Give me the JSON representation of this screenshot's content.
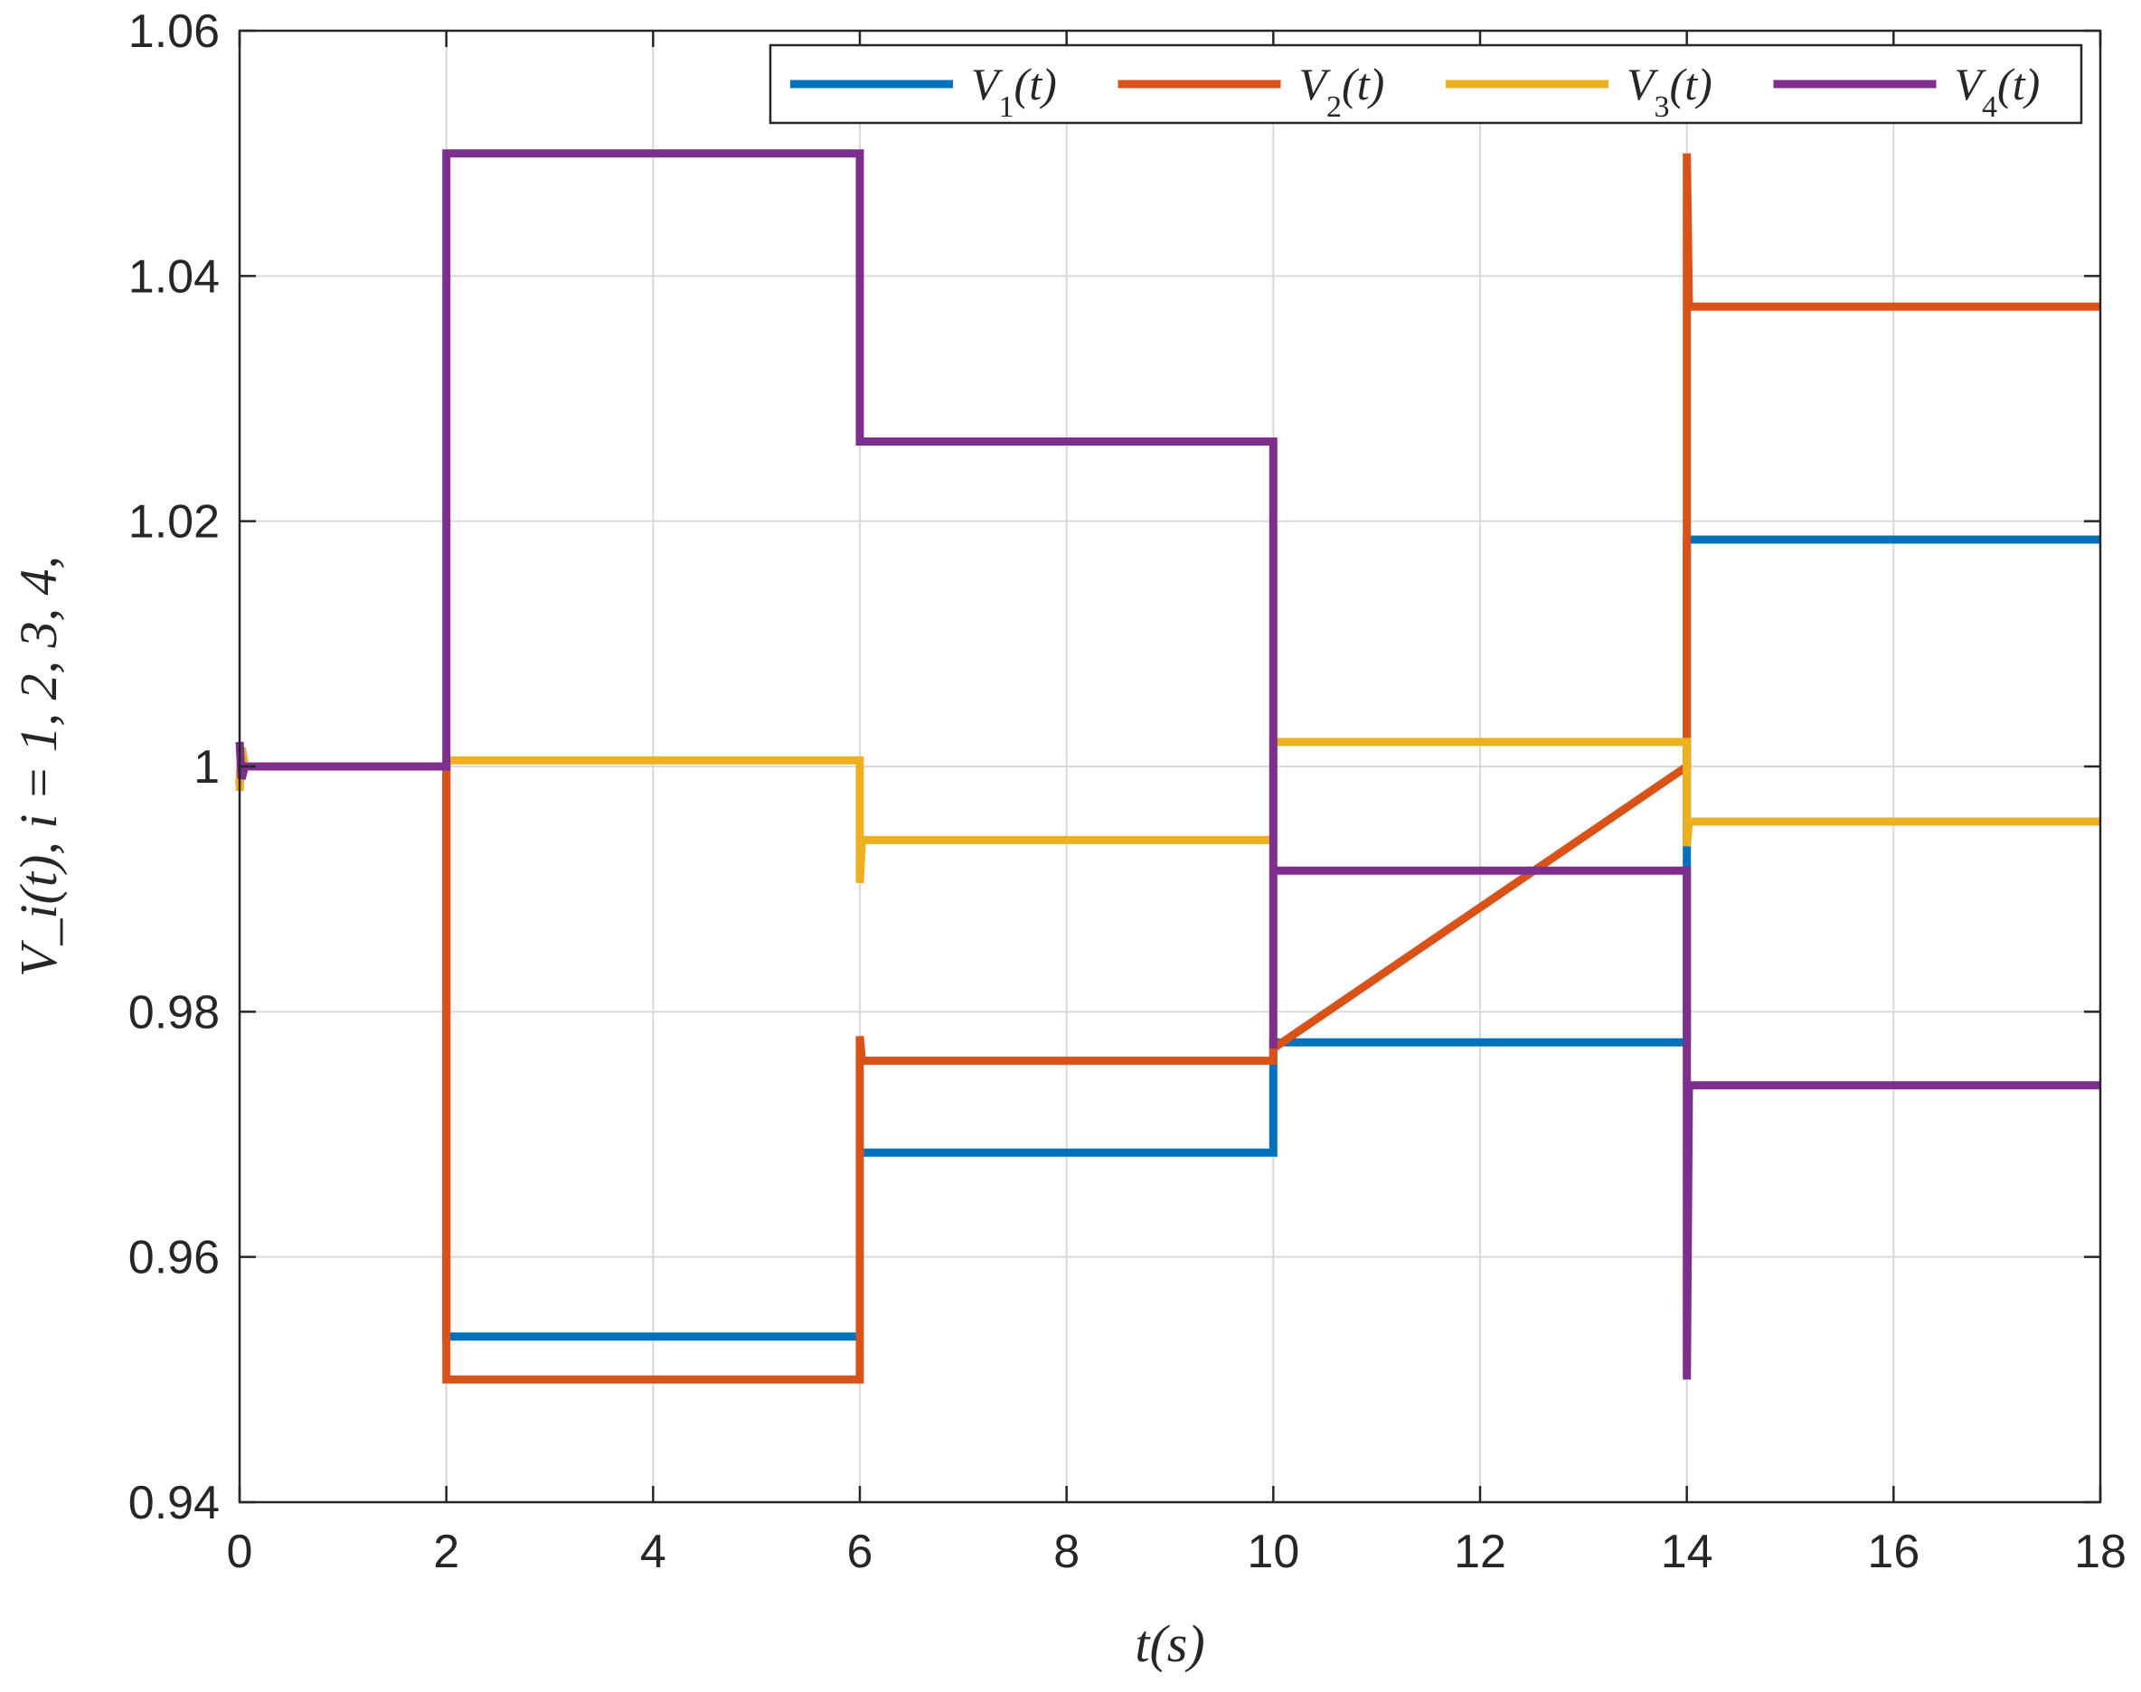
{
  "chart_data": {
    "type": "line",
    "title": "",
    "xlabel": "t(s)",
    "ylabel": "V_i(t), i = 1, 2, 3, 4,",
    "xlim": [
      0,
      18
    ],
    "ylim": [
      0.94,
      1.06
    ],
    "grid": true,
    "legend_position": "top-right",
    "x_ticks": [
      0,
      2,
      4,
      6,
      8,
      10,
      12,
      14,
      16,
      18
    ],
    "x_tick_labels": [
      "0",
      "2",
      "4",
      "6",
      "8",
      "10",
      "12",
      "14",
      "16",
      "18"
    ],
    "y_ticks": [
      0.94,
      0.96,
      0.98,
      1.0,
      1.02,
      1.04,
      1.06
    ],
    "y_tick_labels": [
      "0.94",
      "0.96",
      "0.98",
      "1",
      "1.02",
      "1.04",
      "1.06"
    ],
    "series": [
      {
        "name": "V_1(t)",
        "label_main": "V",
        "label_sub": "1",
        "label_arg": "(t)",
        "color": "#0072BD",
        "x": [
          0,
          0.02,
          0.05,
          2,
          2,
          6,
          6,
          10,
          10,
          14,
          14,
          18
        ],
        "y": [
          0.9985,
          1.0015,
          1.0,
          1.0,
          0.9535,
          0.9535,
          0.9685,
          0.9685,
          0.9775,
          0.9775,
          1.0185,
          1.0185
        ]
      },
      {
        "name": "V_2(t)",
        "label_main": "V",
        "label_sub": "2",
        "label_arg": "(t)",
        "color": "#D95319",
        "x": [
          0,
          0.02,
          0.05,
          2,
          2,
          6,
          6,
          6.02,
          10,
          10,
          14,
          14,
          14.02,
          18
        ],
        "y": [
          0.9985,
          1.0015,
          1.0,
          1.0,
          0.95,
          0.95,
          0.978,
          0.976,
          0.976,
          0.977,
          1.0,
          1.05,
          1.0375,
          1.0375
        ]
      },
      {
        "name": "V_3(t)",
        "label_main": "V",
        "label_sub": "3",
        "label_arg": "(t)",
        "color": "#EDB120",
        "x": [
          0,
          0.02,
          0.05,
          2,
          2,
          6,
          6,
          6.02,
          10,
          10,
          14,
          14,
          14.02,
          18
        ],
        "y": [
          0.998,
          1.0015,
          1.0,
          1.0,
          1.0005,
          1.0005,
          0.9905,
          0.994,
          0.994,
          1.002,
          1.002,
          0.9935,
          0.9955,
          0.9955
        ]
      },
      {
        "name": "V_4(t)",
        "label_main": "V",
        "label_sub": "4",
        "label_arg": "(t)",
        "color": "#7E2F8E",
        "x": [
          0,
          0.02,
          0.05,
          2,
          2,
          6,
          6,
          10,
          10,
          10,
          14,
          14,
          14.02,
          18
        ],
        "y": [
          1.002,
          0.999,
          1.0,
          1.0,
          1.05,
          1.05,
          1.0265,
          1.0265,
          0.977,
          0.9915,
          0.9915,
          0.95,
          0.974,
          0.974
        ]
      }
    ]
  }
}
